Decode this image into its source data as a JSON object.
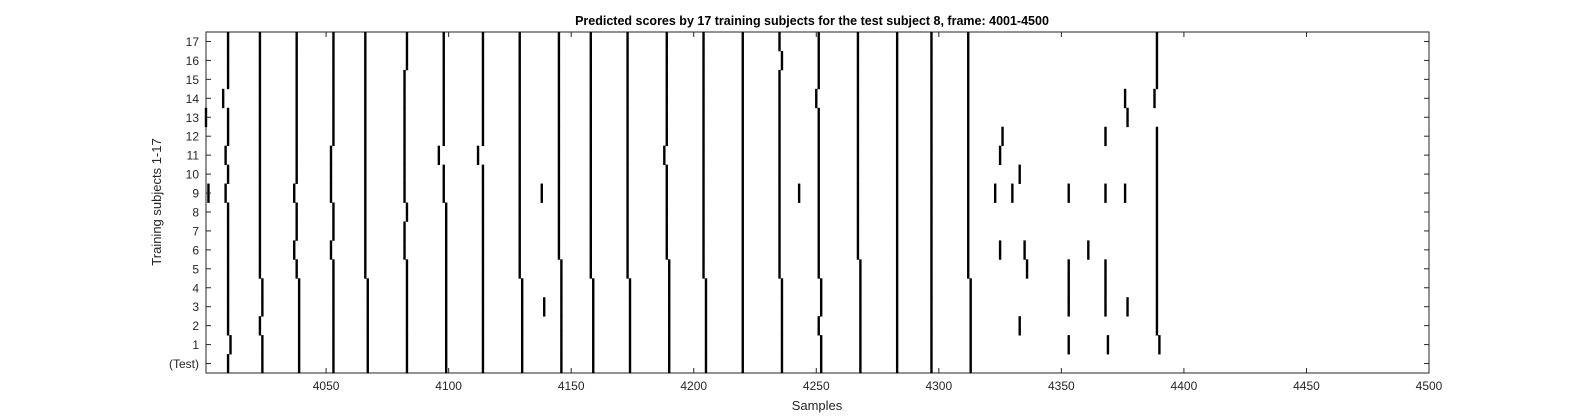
{
  "chart_data": {
    "type": "event-raster",
    "title": "Predicted scores by 17 training subjects for the test subject 8, frame: 4001-4500",
    "xlabel": "Samples",
    "ylabel": "Training subjects 1-17",
    "xlim": [
      4001,
      4500
    ],
    "x_ticks": [
      4050,
      4100,
      4150,
      4200,
      4250,
      4300,
      4350,
      4400,
      4450,
      4500
    ],
    "rows": [
      "(Test)",
      "1",
      "2",
      "3",
      "4",
      "5",
      "6",
      "7",
      "8",
      "9",
      "10",
      "11",
      "12",
      "13",
      "14",
      "15",
      "16",
      "17"
    ],
    "grid": false,
    "colors": {
      "marks": "#000000",
      "axes": "#262626",
      "background": "#ffffff"
    },
    "series": [
      {
        "row": "(Test)",
        "events": [
          4010,
          4024,
          4039,
          4053,
          4067,
          4083,
          4099,
          4114,
          4130,
          4146,
          4159,
          4174,
          4190,
          4205,
          4220,
          4236,
          4252,
          4268,
          4283,
          4297,
          4313
        ]
      },
      {
        "row": "1",
        "events": [
          4011,
          4024,
          4039,
          4053,
          4067,
          4083,
          4099,
          4114,
          4130,
          4146,
          4159,
          4174,
          4190,
          4205,
          4220,
          4236,
          4252,
          4268,
          4283,
          4297,
          4313,
          4353,
          4369,
          4390
        ]
      },
      {
        "row": "2",
        "events": [
          4010,
          4023,
          4039,
          4053,
          4067,
          4083,
          4099,
          4114,
          4130,
          4146,
          4159,
          4174,
          4190,
          4205,
          4220,
          4236,
          4251,
          4268,
          4283,
          4297,
          4313,
          4333,
          4389
        ]
      },
      {
        "row": "3",
        "events": [
          4010,
          4024,
          4039,
          4053,
          4067,
          4083,
          4099,
          4114,
          4130,
          4139,
          4146,
          4159,
          4174,
          4190,
          4205,
          4220,
          4236,
          4252,
          4268,
          4283,
          4297,
          4313,
          4353,
          4368,
          4377,
          4389
        ]
      },
      {
        "row": "4",
        "events": [
          4010,
          4024,
          4039,
          4053,
          4067,
          4083,
          4099,
          4114,
          4130,
          4146,
          4159,
          4174,
          4190,
          4205,
          4220,
          4236,
          4252,
          4268,
          4283,
          4297,
          4313,
          4353,
          4368,
          4389
        ]
      },
      {
        "row": "5",
        "events": [
          4010,
          4023,
          4038,
          4053,
          4066,
          4083,
          4099,
          4114,
          4129,
          4146,
          4158,
          4173,
          4190,
          4204,
          4220,
          4235,
          4251,
          4268,
          4283,
          4297,
          4312,
          4336,
          4353,
          4368,
          4389
        ]
      },
      {
        "row": "6",
        "events": [
          4010,
          4023,
          4037,
          4052,
          4066,
          4082,
          4099,
          4114,
          4129,
          4145,
          4158,
          4173,
          4189,
          4204,
          4220,
          4235,
          4251,
          4267,
          4283,
          4297,
          4312,
          4325,
          4335,
          4361,
          4389
        ]
      },
      {
        "row": "7",
        "events": [
          4010,
          4023,
          4038,
          4053,
          4066,
          4082,
          4099,
          4114,
          4129,
          4145,
          4158,
          4173,
          4189,
          4204,
          4220,
          4235,
          4251,
          4267,
          4283,
          4297,
          4312,
          4389
        ]
      },
      {
        "row": "8",
        "events": [
          4010,
          4023,
          4038,
          4053,
          4066,
          4083,
          4099,
          4114,
          4129,
          4145,
          4158,
          4173,
          4189,
          4204,
          4220,
          4235,
          4251,
          4267,
          4283,
          4297,
          4312,
          4389
        ]
      },
      {
        "row": "9",
        "events": [
          4002,
          4009,
          4023,
          4037,
          4052,
          4066,
          4082,
          4098,
          4114,
          4129,
          4138,
          4145,
          4158,
          4173,
          4189,
          4204,
          4220,
          4235,
          4243,
          4251,
          4267,
          4283,
          4297,
          4312,
          4323,
          4330,
          4353,
          4368,
          4376,
          4389
        ]
      },
      {
        "row": "10",
        "events": [
          4010,
          4023,
          4038,
          4052,
          4066,
          4082,
          4098,
          4114,
          4129,
          4145,
          4158,
          4173,
          4189,
          4204,
          4220,
          4235,
          4251,
          4267,
          4283,
          4297,
          4312,
          4333,
          4389
        ]
      },
      {
        "row": "11",
        "events": [
          4009,
          4023,
          4038,
          4052,
          4066,
          4082,
          4096,
          4112,
          4129,
          4145,
          4158,
          4173,
          4188,
          4204,
          4220,
          4235,
          4251,
          4267,
          4283,
          4297,
          4312,
          4325,
          4389
        ]
      },
      {
        "row": "12",
        "events": [
          4010,
          4023,
          4038,
          4053,
          4066,
          4082,
          4098,
          4114,
          4129,
          4145,
          4158,
          4173,
          4189,
          4204,
          4220,
          4235,
          4251,
          4267,
          4283,
          4297,
          4312,
          4326,
          4368,
          4389
        ]
      },
      {
        "row": "13",
        "events": [
          4001,
          4010,
          4023,
          4038,
          4053,
          4066,
          4082,
          4098,
          4114,
          4129,
          4145,
          4158,
          4173,
          4189,
          4204,
          4220,
          4235,
          4251,
          4267,
          4283,
          4297,
          4312,
          4377
        ]
      },
      {
        "row": "14",
        "events": [
          4008,
          4023,
          4038,
          4053,
          4066,
          4082,
          4098,
          4114,
          4129,
          4145,
          4158,
          4173,
          4189,
          4204,
          4220,
          4235,
          4250,
          4267,
          4283,
          4297,
          4312,
          4376,
          4388
        ]
      },
      {
        "row": "15",
        "events": [
          4010,
          4023,
          4038,
          4053,
          4066,
          4082,
          4098,
          4114,
          4129,
          4145,
          4158,
          4173,
          4189,
          4204,
          4220,
          4235,
          4251,
          4267,
          4283,
          4297,
          4312,
          4389
        ]
      },
      {
        "row": "16",
        "events": [
          4010,
          4023,
          4038,
          4053,
          4066,
          4083,
          4098,
          4114,
          4129,
          4145,
          4158,
          4173,
          4189,
          4204,
          4220,
          4236,
          4251,
          4267,
          4283,
          4297,
          4312,
          4389
        ]
      },
      {
        "row": "17",
        "events": [
          4010,
          4023,
          4038,
          4053,
          4066,
          4083,
          4098,
          4114,
          4129,
          4145,
          4158,
          4173,
          4189,
          4204,
          4220,
          4235,
          4251,
          4267,
          4283,
          4297,
          4312,
          4389
        ]
      }
    ]
  }
}
